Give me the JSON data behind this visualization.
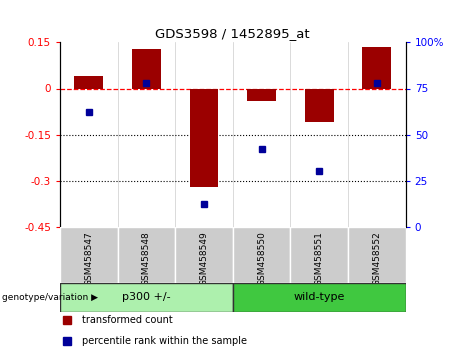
{
  "title": "GDS3598 / 1452895_at",
  "samples": [
    "GSM458547",
    "GSM458548",
    "GSM458549",
    "GSM458550",
    "GSM458551",
    "GSM458552"
  ],
  "red_values": [
    0.04,
    0.13,
    -0.32,
    -0.04,
    -0.11,
    0.135
  ],
  "blue_percentiles": [
    62,
    78,
    12,
    42,
    30,
    78
  ],
  "groups": [
    {
      "label": "p300 +/-",
      "indices": [
        0,
        1,
        2
      ],
      "color": "#adf0ad"
    },
    {
      "label": "wild-type",
      "indices": [
        3,
        4,
        5
      ],
      "color": "#40c840"
    }
  ],
  "ylim_left": [
    -0.45,
    0.15
  ],
  "ylim_right": [
    0,
    100
  ],
  "yticks_left": [
    0.15,
    0.0,
    -0.15,
    -0.3,
    -0.45
  ],
  "ytick_left_labels": [
    "0.15",
    "0",
    "-0.15",
    "-0.3",
    "-0.45"
  ],
  "yticks_right": [
    100,
    75,
    50,
    25,
    0
  ],
  "ytick_right_labels": [
    "100%",
    "75",
    "50",
    "25",
    "0"
  ],
  "red_color": "#9B0000",
  "blue_color": "#000099",
  "bar_width": 0.5,
  "dotted_lines": [
    -0.15,
    -0.3
  ],
  "legend_red": "transformed count",
  "legend_blue": "percentile rank within the sample",
  "cell_color": "#cccccc",
  "group_label": "genotype/variation"
}
